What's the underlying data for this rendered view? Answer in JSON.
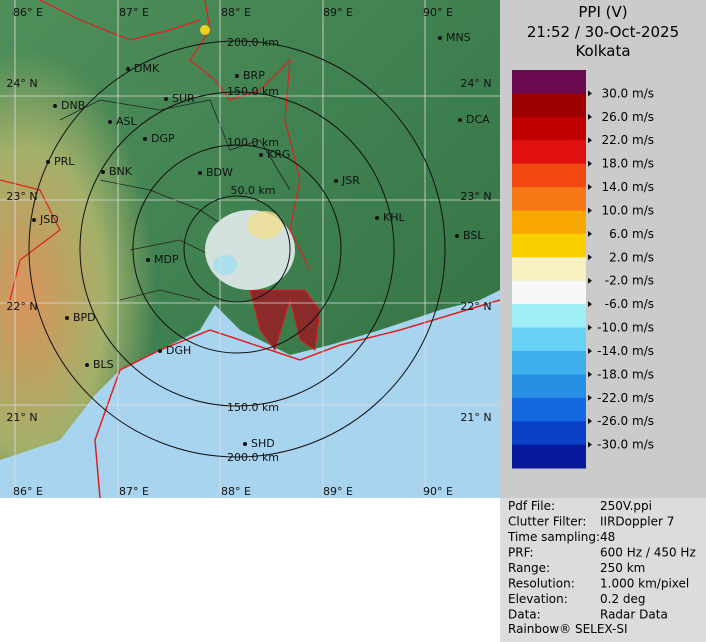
{
  "header": {
    "title": "PPI (V)",
    "time": "21:52 / 30-Oct-2025",
    "station": "Kolkata"
  },
  "scale": {
    "labels": [
      "30.0 m/s",
      "26.0 m/s",
      "22.0 m/s",
      "18.0 m/s",
      "14.0 m/s",
      "10.0 m/s",
      "6.0 m/s",
      "2.0 m/s",
      "-2.0 m/s",
      "-6.0 m/s",
      "-10.0 m/s",
      "-14.0 m/s",
      "-18.0 m/s",
      "-22.0 m/s",
      "-26.0 m/s",
      "-30.0 m/s"
    ]
  },
  "map": {
    "lon_labels": [
      "86° E",
      "87° E",
      "88° E",
      "89° E",
      "90° E"
    ],
    "lat_labels": [
      "24° N",
      "23° N",
      "22° N",
      "21° N"
    ],
    "ring_labels": [
      "200.0 km",
      "150.0 km",
      "100.0 km",
      "50.0 km",
      "150.0 km",
      "200.0 km"
    ],
    "cities": [
      "MNS",
      "DMK",
      "BRP",
      "DNB",
      "SUR",
      "ASL",
      "DGP",
      "DCA",
      "PRL",
      "BNK",
      "KRG",
      "BDW",
      "JSR",
      "KHL",
      "JSD",
      "BSL",
      "MDP",
      "DGH",
      "BPD",
      "BLS",
      "SHD"
    ]
  },
  "info": {
    "rows": [
      [
        "Pdf File:",
        "250V.ppi"
      ],
      [
        "Clutter Filter:",
        "IIRDoppler 7"
      ],
      [
        "Time sampling:",
        "48"
      ],
      [
        "PRF:",
        "600 Hz / 450 Hz"
      ],
      [
        "Range:",
        "250 km"
      ],
      [
        "Resolution:",
        "1.000 km/pixel"
      ],
      [
        "Elevation:",
        "0.2 deg"
      ],
      [
        "Data:",
        "Radar Data"
      ]
    ],
    "footer": "Rainbow® SELEX-SI"
  }
}
